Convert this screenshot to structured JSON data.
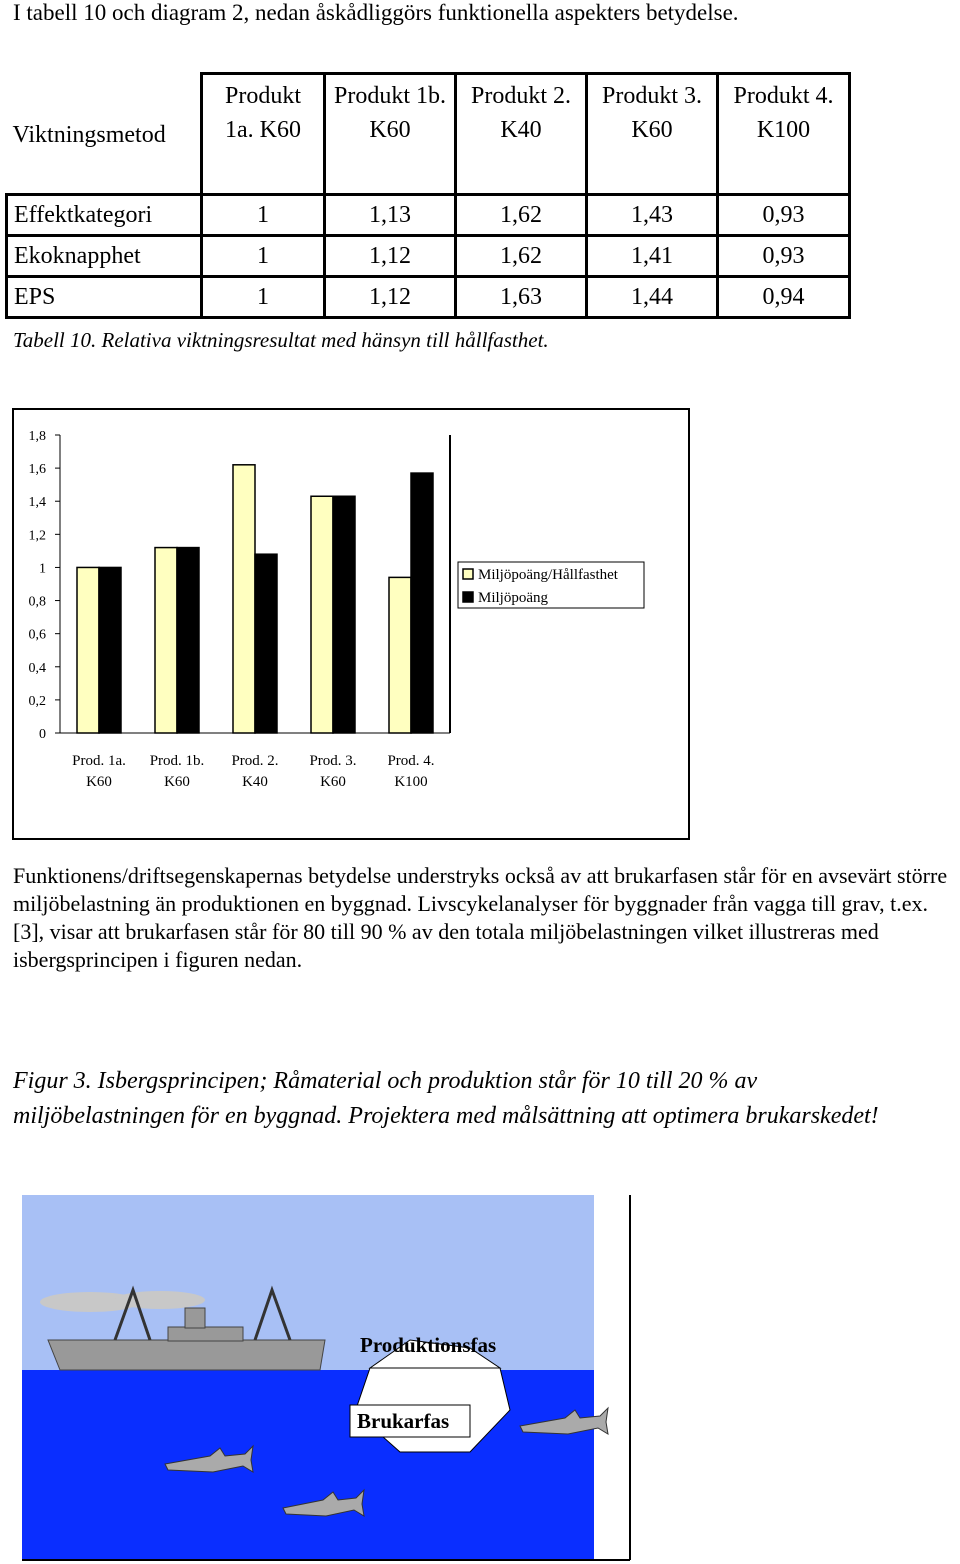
{
  "intro": "I tabell 10 och diagram 2, nedan åskådliggörs funktionella aspekters betydelse.",
  "table": {
    "header": [
      "Viktningsmetod",
      "Produkt 1a. K60",
      "Produkt 1b. K60",
      "Produkt 2. K40",
      "Produkt 3. K60",
      "Produkt 4. K100"
    ],
    "rows": [
      [
        "Effektkategori",
        "1",
        "1,13",
        "1,62",
        "1,43",
        "0,93"
      ],
      [
        "Ekoknapphet",
        "1",
        "1,12",
        "1,62",
        "1,41",
        "0,93"
      ],
      [
        "EPS",
        "1",
        "1,12",
        "1,63",
        "1,44",
        "0,94"
      ]
    ],
    "caption": "Tabell 10. Relativa viktningsresultat med hänsyn till hållfasthet."
  },
  "chart_data": {
    "type": "bar",
    "categories": [
      "Prod. 1a. K60",
      "Prod. 1b. K60",
      "Prod. 2. K40",
      "Prod. 3. K60",
      "Prod. 4. K100"
    ],
    "series": [
      {
        "name": "Miljöpoäng/Hållfasthet",
        "color": "#ffffc0",
        "values": [
          1,
          1.12,
          1.62,
          1.43,
          0.94
        ]
      },
      {
        "name": "Miljöpoäng",
        "color": "#000000",
        "values": [
          1,
          1.12,
          1.08,
          1.43,
          1.57
        ]
      }
    ],
    "ylim": [
      0,
      1.8
    ],
    "yticks": [
      0,
      {
        "value": 0.2,
        "label": "0,2"
      },
      {
        "value": 0.4,
        "label": "0,4"
      },
      {
        "value": 0.6,
        "label": "0,6"
      },
      {
        "value": 0.8,
        "label": "0,8"
      },
      1,
      {
        "value": 1.2,
        "label": "1,2"
      },
      {
        "value": 1.4,
        "label": "1,4"
      },
      {
        "value": 1.6,
        "label": "1,6"
      },
      {
        "value": 1.8,
        "label": "1,8"
      }
    ],
    "legend": "right"
  },
  "paragraph": "Funktionens/driftsegenskapernas betydelse understryks också av att brukarfasen står för en avsevärt större miljöbelastning än produktionen en byggnad. Livscykelanalyser för byggnader från vagga till grav, t.ex. [3], visar att brukarfasen står för 80 till 90 % av den totala miljöbelastningen vilket illustreras med isbergsprincipen i figuren nedan.",
  "figure": {
    "caption": "Figur 3. Isbergsprincipen; Råmaterial och produktion står för 10 till 20 % av miljöbelastningen för en byggnad. Projektera med målsättning att optimera brukarskedet!",
    "labels": [
      "Produktionsfas",
      "Brukarfas"
    ]
  }
}
